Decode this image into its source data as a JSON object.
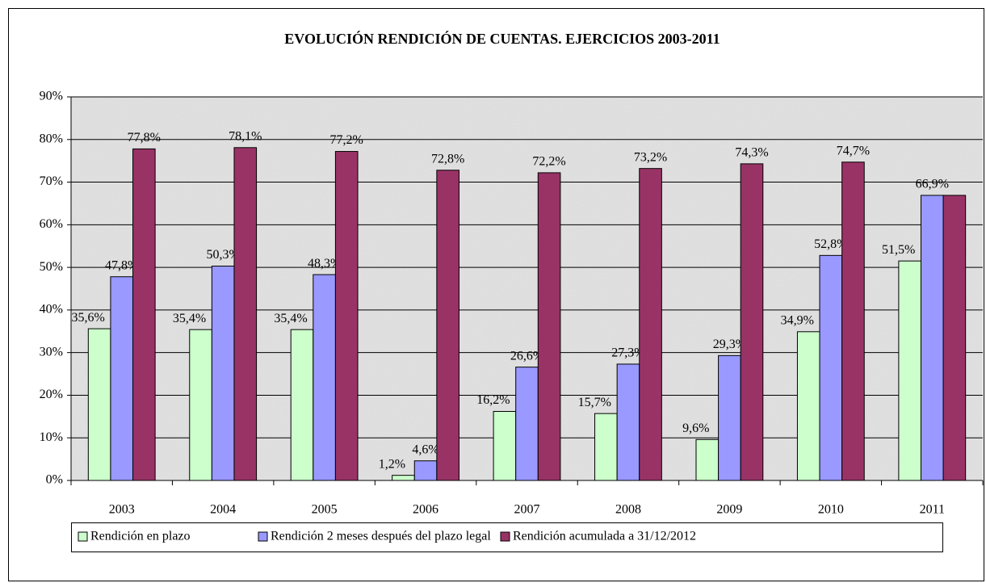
{
  "chart_data": {
    "type": "bar",
    "title": "EVOLUCIÓN RENDICIÓN DE CUENTAS. EJERCICIOS 2003-2011",
    "categories": [
      "2003",
      "2004",
      "2005",
      "2006",
      "2007",
      "2008",
      "2009",
      "2010",
      "2011"
    ],
    "series": [
      {
        "name": "Rendición en plazo",
        "color": "#ccffcc",
        "values": [
          35.6,
          35.4,
          35.4,
          1.2,
          16.2,
          15.7,
          9.6,
          34.9,
          51.5
        ],
        "value_labels": [
          "35,6%",
          "35,4%",
          "35,4%",
          "1,2%",
          "16,2%",
          "15,7%",
          "9,6%",
          "34,9%",
          "51,5%"
        ]
      },
      {
        "name": "Rendición 2 meses después del plazo legal",
        "color": "#9999ff",
        "values": [
          47.8,
          50.3,
          48.3,
          4.6,
          26.6,
          27.3,
          29.3,
          52.8,
          66.9
        ],
        "value_labels": [
          "47,8%",
          "50,3%",
          "48,3%",
          "4,6%",
          "26,6%",
          "27,3%",
          "29,3%",
          "52,8%",
          "66,9%"
        ]
      },
      {
        "name": "Rendición acumulada a 31/12/2012",
        "color": "#993366",
        "values": [
          77.8,
          78.1,
          77.2,
          72.8,
          72.2,
          73.2,
          74.3,
          74.7,
          66.9
        ],
        "value_labels": [
          "77,8%",
          "78,1%",
          "77,2%",
          "72,8%",
          "72,2%",
          "73,2%",
          "74,3%",
          "74,7%",
          null
        ]
      }
    ],
    "ylim": [
      0,
      90
    ],
    "yticks": [
      {
        "value": 0,
        "label": "0%"
      },
      {
        "value": 10,
        "label": "10%"
      },
      {
        "value": 20,
        "label": "20%"
      },
      {
        "value": 30,
        "label": "30%"
      },
      {
        "value": 40,
        "label": "40%"
      },
      {
        "value": 50,
        "label": "50%"
      },
      {
        "value": 60,
        "label": "60%"
      },
      {
        "value": 70,
        "label": "70%"
      },
      {
        "value": 80,
        "label": "80%"
      },
      {
        "value": 90,
        "label": "90%"
      }
    ],
    "grid": true,
    "legend": "bottom"
  }
}
